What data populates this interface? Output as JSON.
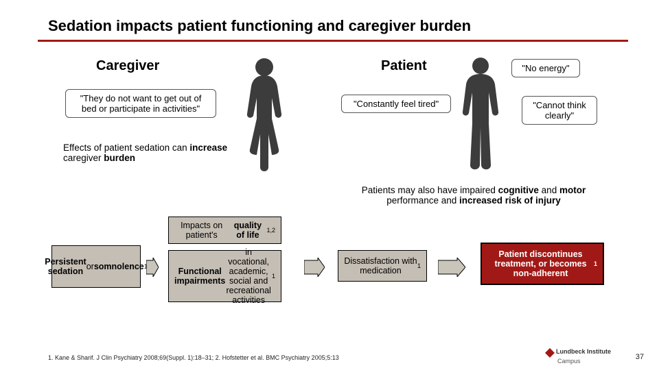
{
  "title": "Sedation impacts patient functioning and caregiver burden",
  "caregiver": {
    "heading": "Caregiver",
    "quote": "\"They do not want to get out of bed or participate in activities\"",
    "effects_html": "Effects of patient sedation can <b>increase</b> caregiver <b>burden</b>"
  },
  "patient": {
    "heading": "Patient",
    "quote1": "\"No energy\"",
    "quote2": "\"Constantly feel tired\"",
    "quote3": "\"Cannot think clearly\"",
    "note_html": "Patients may also have impaired <b>cognitive</b> and <b>motor</b> performance and <b>increased risk of injury</b>"
  },
  "flow": {
    "box1_html": "<b>Persistent sedation</b> or <b>somnolence</b><sup>1</sup>",
    "box2a_html": "Impacts on patient's <b>quality of life</b><sup>1,2</sup>",
    "box2b_html": "<b>Functional impairments</b> in vocational, academic, social and recreational activities<sup>1</sup>",
    "box3_html": "Dissatisfaction with medication<sup>1</sup>",
    "box4_html": "Patient discontinues treatment, or becomes non-adherent<sup>1</sup>",
    "box_bg": "#c4beb4",
    "outcome_bg": "#a11916",
    "arrow_fill": "#c9c5ba"
  },
  "refs": "1. Kane & Sharif. J Clin Psychiatry 2008;69(Suppl. 1):18–31; 2. Hofstetter et al. BMC Psychiatry 2005;5:13",
  "brand_line1": "Lundbeck Institute",
  "brand_line2": "Campus",
  "page": "37",
  "colors": {
    "accent": "#a11916",
    "silhouette": "#3c3c3c"
  }
}
